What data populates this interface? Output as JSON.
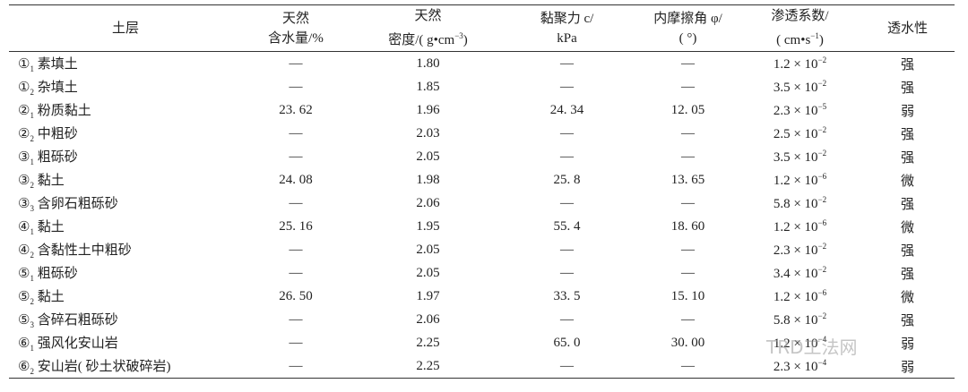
{
  "table": {
    "header": [
      {
        "lines": [
          [
            "土层"
          ]
        ]
      },
      {
        "lines": [
          [
            "天然"
          ],
          [
            "含水量/%"
          ]
        ]
      },
      {
        "lines": [
          [
            "天然"
          ],
          [
            "密度/( g•cm",
            "−3",
            ")"
          ]
        ]
      },
      {
        "lines": [
          [
            "黏聚力 c/"
          ],
          [
            "kPa"
          ]
        ]
      },
      {
        "lines": [
          [
            "内摩擦角 φ/"
          ],
          [
            "( °)"
          ]
        ]
      },
      {
        "lines": [
          [
            "渗透系数/"
          ],
          [
            "( cm•s",
            "−1",
            ")"
          ]
        ]
      },
      {
        "lines": [
          [
            "透水性"
          ]
        ]
      }
    ],
    "rows": [
      {
        "layer": {
          "num": "①",
          "sub": "1",
          "name": "素填土"
        },
        "water": "—",
        "density": "1.80",
        "cohesion": "—",
        "friction": "—",
        "perm": {
          "base": "1.2 × 10",
          "exp": "−2"
        },
        "permeability": "强"
      },
      {
        "layer": {
          "num": "①",
          "sub": "2",
          "name": "杂填土"
        },
        "water": "—",
        "density": "1.85",
        "cohesion": "—",
        "friction": "—",
        "perm": {
          "base": "3.5 × 10",
          "exp": "−2"
        },
        "permeability": "强"
      },
      {
        "layer": {
          "num": "②",
          "sub": "1",
          "name": "粉质黏土"
        },
        "water": "23. 62",
        "density": "1.96",
        "cohesion": "24. 34",
        "friction": "12. 05",
        "perm": {
          "base": "2.3 × 10",
          "exp": "−5"
        },
        "permeability": "弱"
      },
      {
        "layer": {
          "num": "②",
          "sub": "2",
          "name": "中粗砂"
        },
        "water": "—",
        "density": "2.03",
        "cohesion": "—",
        "friction": "—",
        "perm": {
          "base": "2.5 × 10",
          "exp": "−2"
        },
        "permeability": "强"
      },
      {
        "layer": {
          "num": "③",
          "sub": "1",
          "name": "粗砾砂"
        },
        "water": "—",
        "density": "2.05",
        "cohesion": "—",
        "friction": "—",
        "perm": {
          "base": "3.5 × 10",
          "exp": "−2"
        },
        "permeability": "强"
      },
      {
        "layer": {
          "num": "③",
          "sub": "2",
          "name": "黏土"
        },
        "water": "24. 08",
        "density": "1.98",
        "cohesion": "25. 8",
        "friction": "13. 65",
        "perm": {
          "base": "1.2 × 10",
          "exp": "−6"
        },
        "permeability": "微"
      },
      {
        "layer": {
          "num": "③",
          "sub": "3",
          "name": "含卵石粗砾砂"
        },
        "water": "—",
        "density": "2.06",
        "cohesion": "—",
        "friction": "—",
        "perm": {
          "base": "5.8 × 10",
          "exp": "−2"
        },
        "permeability": "强"
      },
      {
        "layer": {
          "num": "④",
          "sub": "1",
          "name": "黏土"
        },
        "water": "25. 16",
        "density": "1.95",
        "cohesion": "55. 4",
        "friction": "18. 60",
        "perm": {
          "base": "1.2 × 10",
          "exp": "−6"
        },
        "permeability": "微"
      },
      {
        "layer": {
          "num": "④",
          "sub": "2",
          "name": "含黏性土中粗砂"
        },
        "water": "—",
        "density": "2.05",
        "cohesion": "—",
        "friction": "—",
        "perm": {
          "base": "2.3 × 10",
          "exp": "−2"
        },
        "permeability": "强"
      },
      {
        "layer": {
          "num": "⑤",
          "sub": "1",
          "name": "粗砾砂"
        },
        "water": "—",
        "density": "2.05",
        "cohesion": "—",
        "friction": "—",
        "perm": {
          "base": "3.4 × 10",
          "exp": "−2"
        },
        "permeability": "强"
      },
      {
        "layer": {
          "num": "⑤",
          "sub": "2",
          "name": "黏土"
        },
        "water": "26. 50",
        "density": "1.97",
        "cohesion": "33. 5",
        "friction": "15. 10",
        "perm": {
          "base": "1.2 × 10",
          "exp": "−6"
        },
        "permeability": "微"
      },
      {
        "layer": {
          "num": "⑤",
          "sub": "3",
          "name": "含碎石粗砾砂"
        },
        "water": "—",
        "density": "2.06",
        "cohesion": "—",
        "friction": "—",
        "perm": {
          "base": "5.8 × 10",
          "exp": "−2"
        },
        "permeability": "强"
      },
      {
        "layer": {
          "num": "⑥",
          "sub": "1",
          "name": "强风化安山岩"
        },
        "water": "—",
        "density": "2.25",
        "cohesion": "65. 0",
        "friction": "30. 00",
        "perm": {
          "base": "1.2 × 10",
          "exp": "−4"
        },
        "permeability": "弱"
      },
      {
        "layer": {
          "num": "⑥",
          "sub": "2",
          "name": "安山岩( 砂土状破碎岩)"
        },
        "water": "—",
        "density": "2.25",
        "cohesion": "—",
        "friction": "—",
        "perm": {
          "base": "2.3 × 10",
          "exp": "−4"
        },
        "permeability": "弱"
      }
    ]
  },
  "watermark": "TRD工法网"
}
